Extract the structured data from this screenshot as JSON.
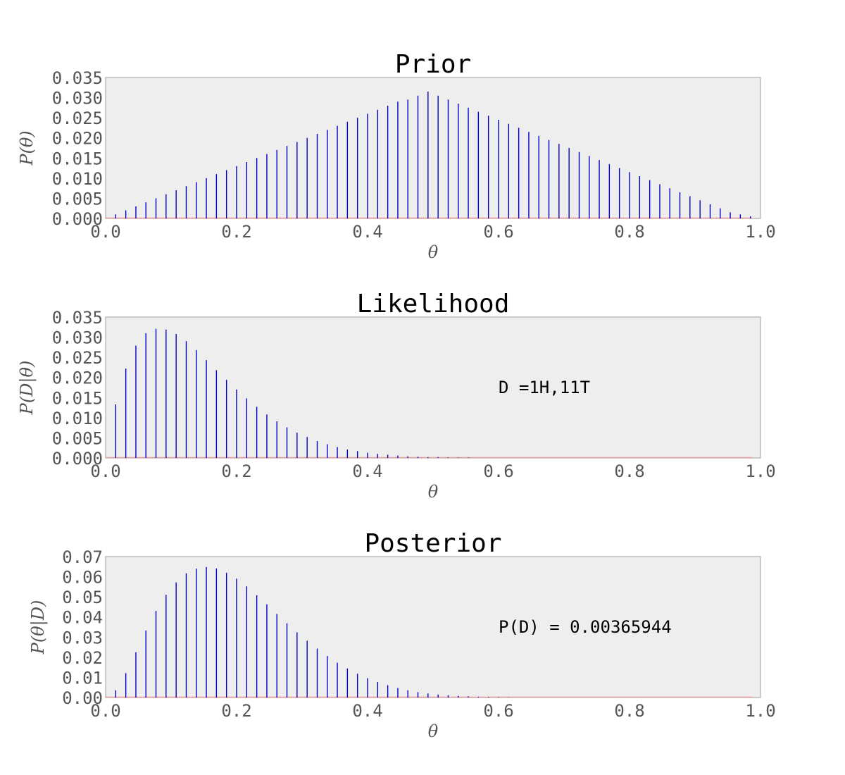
{
  "chart_data": [
    {
      "type": "bar",
      "title": "Prior",
      "xlabel": "θ",
      "ylabel": "P(θ)",
      "xlim": [
        0.0,
        1.0
      ],
      "ylim": [
        0.0,
        0.035
      ],
      "xticks": [
        "0.0",
        "0.2",
        "0.4",
        "0.6",
        "0.8",
        "1.0"
      ],
      "yticks": [
        "0.000",
        "0.005",
        "0.010",
        "0.015",
        "0.020",
        "0.025",
        "0.030",
        "0.035"
      ],
      "grid": false,
      "bar_color": "#0000cc",
      "baseline_color": "#e8a0a0",
      "annotation": "",
      "x": [
        0.0154,
        0.0308,
        0.0462,
        0.0615,
        0.0769,
        0.0923,
        0.1077,
        0.1231,
        0.1385,
        0.1538,
        0.1692,
        0.1846,
        0.2,
        0.2154,
        0.2308,
        0.2462,
        0.2615,
        0.2769,
        0.2923,
        0.3077,
        0.3231,
        0.3385,
        0.3538,
        0.3692,
        0.3846,
        0.4,
        0.4154,
        0.4308,
        0.4462,
        0.4615,
        0.4769,
        0.4923,
        0.5077,
        0.5231,
        0.5385,
        0.5538,
        0.5692,
        0.5846,
        0.6,
        0.6154,
        0.6308,
        0.6462,
        0.6615,
        0.6769,
        0.6923,
        0.7077,
        0.7231,
        0.7385,
        0.7538,
        0.7692,
        0.7846,
        0.8,
        0.8154,
        0.8308,
        0.8462,
        0.8615,
        0.8769,
        0.8923,
        0.9077,
        0.9231,
        0.9385,
        0.9538,
        0.9692,
        0.9846
      ],
      "values": [
        0.001,
        0.002,
        0.003,
        0.004,
        0.005,
        0.006,
        0.007,
        0.008,
        0.009,
        0.01,
        0.011,
        0.012,
        0.013,
        0.014,
        0.015,
        0.016,
        0.017,
        0.018,
        0.019,
        0.02,
        0.021,
        0.022,
        0.023,
        0.024,
        0.025,
        0.026,
        0.027,
        0.028,
        0.029,
        0.0295,
        0.0305,
        0.0315,
        0.0305,
        0.0295,
        0.0285,
        0.0275,
        0.0265,
        0.0255,
        0.0245,
        0.0235,
        0.0225,
        0.0215,
        0.0205,
        0.0195,
        0.0185,
        0.0175,
        0.0165,
        0.0155,
        0.0145,
        0.0135,
        0.0125,
        0.0115,
        0.0105,
        0.0095,
        0.0085,
        0.0075,
        0.0065,
        0.0055,
        0.0045,
        0.0035,
        0.0025,
        0.0015,
        0.001,
        0.0005
      ]
    },
    {
      "type": "bar",
      "title": "Likelihood",
      "xlabel": "θ",
      "ylabel": "P(D|θ)",
      "xlim": [
        0.0,
        1.0
      ],
      "ylim": [
        0.0,
        0.035
      ],
      "xticks": [
        "0.0",
        "0.2",
        "0.4",
        "0.6",
        "0.8",
        "1.0"
      ],
      "yticks": [
        "0.000",
        "0.005",
        "0.010",
        "0.015",
        "0.020",
        "0.025",
        "0.030",
        "0.035"
      ],
      "grid": false,
      "bar_color": "#0000cc",
      "baseline_color": "#e8a0a0",
      "annotation": "D =1H,11T",
      "x": [
        0.0154,
        0.0308,
        0.0462,
        0.0615,
        0.0769,
        0.0923,
        0.1077,
        0.1231,
        0.1385,
        0.1538,
        0.1692,
        0.1846,
        0.2,
        0.2154,
        0.2308,
        0.2462,
        0.2615,
        0.2769,
        0.2923,
        0.3077,
        0.3231,
        0.3385,
        0.3538,
        0.3692,
        0.3846,
        0.4,
        0.4154,
        0.4308,
        0.4462,
        0.4615,
        0.4769,
        0.4923,
        0.5077,
        0.5231,
        0.5385,
        0.5538,
        0.5692,
        0.5846,
        0.6,
        0.6154,
        0.6308,
        0.6462,
        0.6615,
        0.6769,
        0.6923,
        0.7077,
        0.7231,
        0.7385,
        0.7538,
        0.7692,
        0.7846,
        0.8,
        0.8154,
        0.8308,
        0.8462,
        0.8615,
        0.8769,
        0.8923,
        0.9077,
        0.9231,
        0.9385,
        0.9538,
        0.9692,
        0.9846
      ],
      "values": [
        0.0133,
        0.0222,
        0.0279,
        0.031,
        0.0321,
        0.0319,
        0.0308,
        0.029,
        0.0268,
        0.0243,
        0.0218,
        0.0194,
        0.017,
        0.0148,
        0.0127,
        0.0108,
        0.0091,
        0.0076,
        0.0063,
        0.0052,
        0.0042,
        0.0034,
        0.0027,
        0.0021,
        0.0017,
        0.0013,
        0.001,
        0.0008,
        0.0006,
        0.0004,
        0.0003,
        0.0002,
        0.0002,
        0.0001,
        0.0001,
        0.0001,
        0.0,
        0.0,
        0.0,
        0.0,
        0.0,
        0.0,
        0.0,
        0.0,
        0.0,
        0.0,
        0.0,
        0.0,
        0.0,
        0.0,
        0.0,
        0.0,
        0.0,
        0.0,
        0.0,
        0.0,
        0.0,
        0.0,
        0.0,
        0.0,
        0.0,
        0.0,
        0.0,
        0.0
      ]
    },
    {
      "type": "bar",
      "title": "Posterior",
      "xlabel": "θ",
      "ylabel": "P(θ|D)",
      "xlim": [
        0.0,
        1.0
      ],
      "ylim": [
        0.0,
        0.07
      ],
      "xticks": [
        "0.0",
        "0.2",
        "0.4",
        "0.6",
        "0.8",
        "1.0"
      ],
      "yticks": [
        "0.00",
        "0.01",
        "0.02",
        "0.03",
        "0.04",
        "0.05",
        "0.06",
        "0.07"
      ],
      "grid": false,
      "bar_color": "#0000cc",
      "baseline_color": "#e8a0a0",
      "annotation": "P(D) = 0.00365944",
      "x": [
        0.0154,
        0.0308,
        0.0462,
        0.0615,
        0.0769,
        0.0923,
        0.1077,
        0.1231,
        0.1385,
        0.1538,
        0.1692,
        0.1846,
        0.2,
        0.2154,
        0.2308,
        0.2462,
        0.2615,
        0.2769,
        0.2923,
        0.3077,
        0.3231,
        0.3385,
        0.3538,
        0.3692,
        0.3846,
        0.4,
        0.4154,
        0.4308,
        0.4462,
        0.4615,
        0.4769,
        0.4923,
        0.5077,
        0.5231,
        0.5385,
        0.5538,
        0.5692,
        0.5846,
        0.6,
        0.6154,
        0.6308,
        0.6462,
        0.6615,
        0.6769,
        0.6923,
        0.7077,
        0.7231,
        0.7385,
        0.7538,
        0.7692,
        0.7846,
        0.8,
        0.8154,
        0.8308,
        0.8462,
        0.8615,
        0.8769,
        0.8923,
        0.9077,
        0.9231,
        0.9385,
        0.9538,
        0.9692,
        0.9846
      ],
      "values": [
        0.0036,
        0.0121,
        0.0225,
        0.0333,
        0.043,
        0.051,
        0.0572,
        0.0617,
        0.064,
        0.0648,
        0.0641,
        0.062,
        0.059,
        0.0552,
        0.0508,
        0.0463,
        0.0415,
        0.0369,
        0.0324,
        0.0282,
        0.0243,
        0.0206,
        0.0173,
        0.0144,
        0.0118,
        0.0096,
        0.0077,
        0.0061,
        0.0047,
        0.0036,
        0.0027,
        0.002,
        0.0015,
        0.0011,
        0.0008,
        0.0006,
        0.0004,
        0.0003,
        0.0002,
        0.0001,
        0.0,
        0.0,
        0.0,
        0.0,
        0.0,
        0.0,
        0.0,
        0.0,
        0.0,
        0.0,
        0.0,
        0.0,
        0.0,
        0.0,
        0.0,
        0.0,
        0.0,
        0.0,
        0.0,
        0.0,
        0.0,
        0.0,
        0.0,
        0.0
      ]
    }
  ]
}
